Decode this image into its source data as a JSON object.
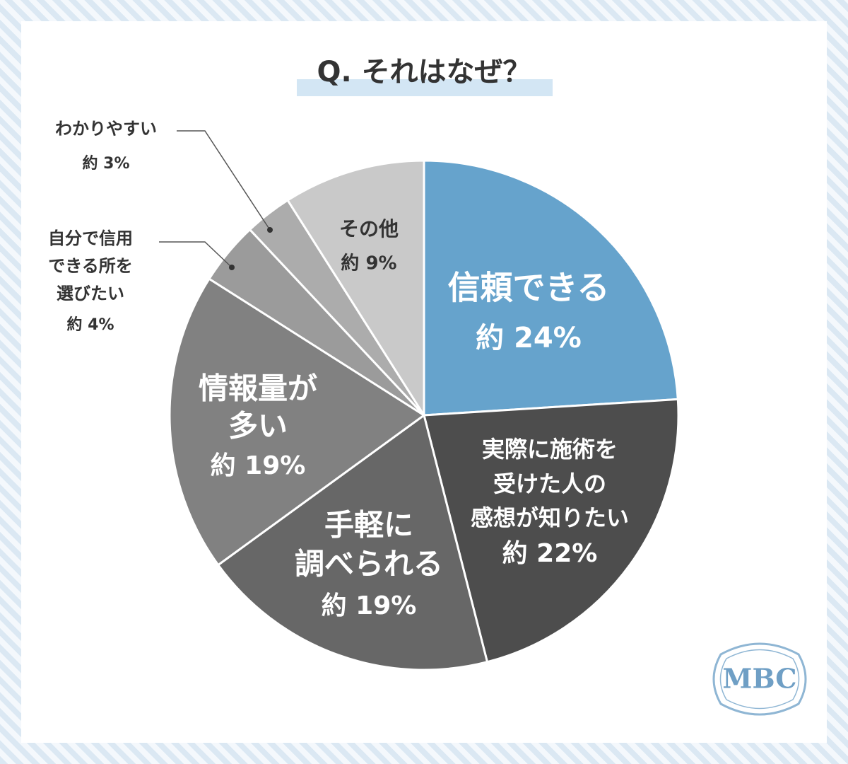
{
  "chart_data": {
    "type": "pie",
    "title": "Q. それはなぜ？",
    "categories": [
      [
        "信頼できる"
      ],
      [
        "実際に施術を",
        "受けた人の",
        "感想が知りたい"
      ],
      [
        "手軽に",
        "調べられる"
      ],
      [
        "情報量が",
        "多い"
      ],
      [
        "自分で信用",
        "できる所を",
        "選びたい"
      ],
      [
        "わかりやすい"
      ],
      [
        "その他"
      ]
    ],
    "values": [
      24,
      22,
      19,
      19,
      4,
      3,
      9
    ],
    "value_labels": [
      "約 24%",
      "約 22%",
      "約 19%",
      "約 19%",
      "約 4%",
      "約 3%",
      "約 9%"
    ],
    "colors": [
      "#66a3cc",
      "#4d4d4d",
      "#676767",
      "#818181",
      "#9b9b9b",
      "#acacac",
      "#c9c9c9"
    ]
  },
  "logo": "MBC"
}
